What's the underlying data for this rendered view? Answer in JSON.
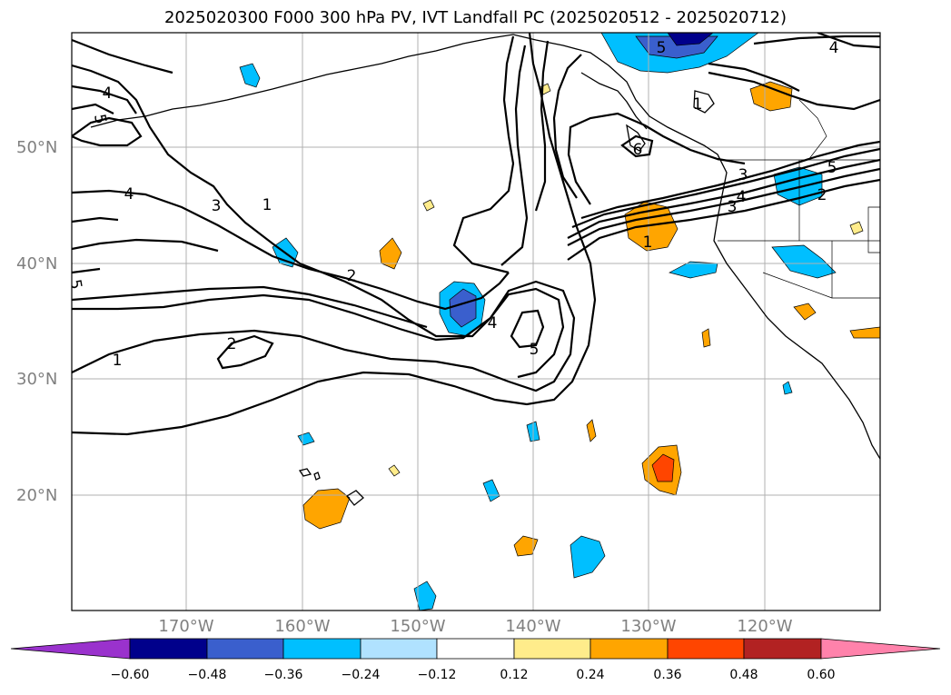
{
  "title": "2025020300 F000 300 hPa PV, IVT Landfall PC (2025020512 - 2025020712)",
  "lat_labels": [
    "50°N",
    "40°N",
    "30°N",
    "20°N"
  ],
  "lon_labels": [
    "170°W",
    "160°W",
    "150°W",
    "140°W",
    "130°W",
    "120°W"
  ],
  "colorbar": {
    "ticks": [
      "−0.60",
      "−0.48",
      "−0.36",
      "−0.24",
      "−0.12",
      "0.12",
      "0.24",
      "0.36",
      "0.48",
      "0.60"
    ],
    "colors": [
      "#9a32cd",
      "#00008b",
      "#3a5fcd",
      "#00bfff",
      "#b0e2ff",
      "#ffffff",
      "#ffec8b",
      "#ffa500",
      "#ff4500",
      "#b22222",
      "#ff82ab"
    ]
  },
  "contour_labels": [
    "5",
    "5",
    "4",
    "4",
    "3",
    "4",
    "5",
    "1",
    "3",
    "2",
    "1",
    "6",
    "4",
    "3",
    "1",
    "2",
    "5",
    "4",
    "2",
    "1",
    "5"
  ]
}
